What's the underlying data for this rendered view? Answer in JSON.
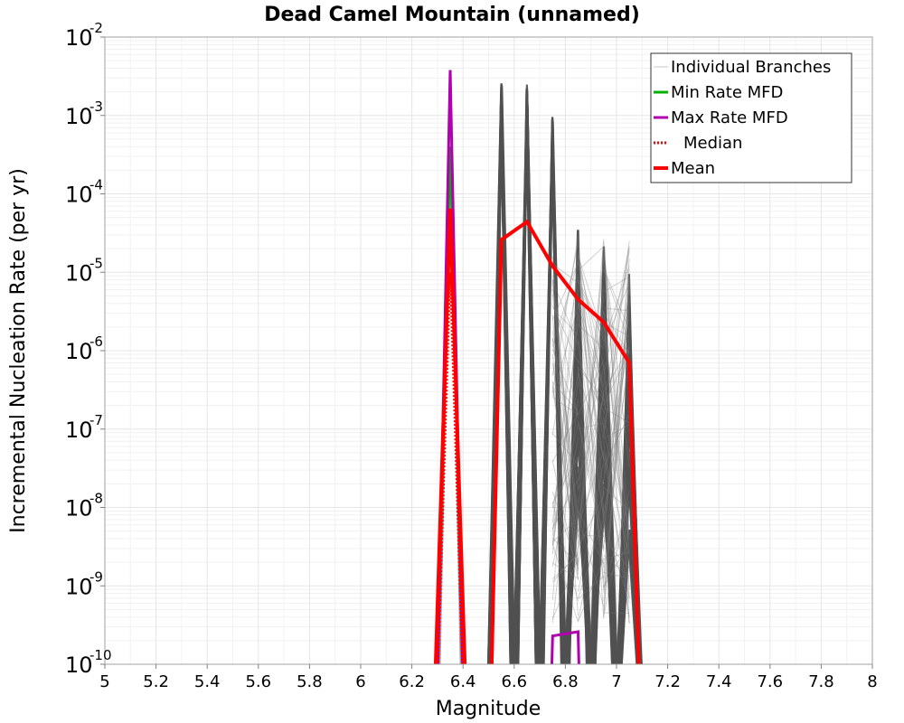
{
  "chart_data": {
    "type": "line",
    "title": "Dead Camel Mountain (unnamed)",
    "xlabel": "Magnitude",
    "ylabel": "Incremental Nucleation Rate (per yr)",
    "xlim": [
      5,
      8
    ],
    "ylim": [
      1e-10,
      0.01
    ],
    "yscale": "log",
    "grid": true,
    "x_ticks": [
      "5",
      "5.2",
      "5.4",
      "5.6",
      "5.8",
      "6",
      "6.2",
      "6.4",
      "6.6",
      "6.8",
      "7",
      "7.2",
      "7.4",
      "7.6",
      "7.8",
      "8"
    ],
    "y_ticks": [
      {
        "base": "10",
        "exp": "-10"
      },
      {
        "base": "10",
        "exp": "-9"
      },
      {
        "base": "10",
        "exp": "-8"
      },
      {
        "base": "10",
        "exp": "-7"
      },
      {
        "base": "10",
        "exp": "-6"
      },
      {
        "base": "10",
        "exp": "-5"
      },
      {
        "base": "10",
        "exp": "-4"
      },
      {
        "base": "10",
        "exp": "-3"
      },
      {
        "base": "10",
        "exp": "-2"
      }
    ],
    "legend": {
      "position": "top-right",
      "entries": [
        {
          "label": "Individual Branches",
          "color": "#c8c8c8",
          "style": "thin"
        },
        {
          "label": "Min Rate MFD",
          "color": "#00b000",
          "style": "solid"
        },
        {
          "label": "Max Rate MFD",
          "color": "#b000b0",
          "style": "solid"
        },
        {
          "label": "Median",
          "color": "#ff0000",
          "style": "dotted"
        },
        {
          "label": "Mean",
          "color": "#ff0000",
          "style": "thick"
        }
      ]
    },
    "colors": {
      "branches": "#505050",
      "min": "#00b000",
      "max": "#b000b0",
      "median": "#ff0000",
      "mean": "#ff0000",
      "grid": "#e6e6e6"
    },
    "series": [
      {
        "name": "Mean",
        "x": [
          6.29,
          6.35,
          6.41,
          6.51,
          6.55,
          6.65,
          6.75,
          6.85,
          6.95,
          7.05,
          7.09
        ],
        "y": [
          1e-10,
          6.5e-05,
          1e-10,
          1e-10,
          2.6e-05,
          4.4e-05,
          1.2e-05,
          4.5e-06,
          2.3e-06,
          7e-07,
          1e-10
        ]
      },
      {
        "name": "Max Rate MFD",
        "x": [
          6.3,
          6.35,
          6.4
        ],
        "y": [
          1e-10,
          0.0038,
          1e-10
        ],
        "x2": [
          6.745,
          6.75,
          6.85,
          6.855
        ],
        "y2": [
          1e-10,
          2.3e-10,
          2.6e-10,
          1e-10
        ]
      },
      {
        "name": "Min Rate MFD",
        "x": [
          6.3,
          6.35,
          6.4
        ],
        "y": [
          1e-10,
          0.0004,
          1e-10
        ]
      },
      {
        "name": "Median",
        "x": [
          6.3,
          6.35,
          6.4
        ],
        "y": [
          1e-10,
          1e-05,
          1e-10
        ]
      },
      {
        "name": "Individual Branches",
        "description": "spike envelopes",
        "spikes": [
          {
            "center": 6.35,
            "peak": 0.0004
          },
          {
            "center": 6.55,
            "peak": 0.0026
          },
          {
            "center": 6.65,
            "peak": 0.0025
          },
          {
            "center": 6.75,
            "peak": 0.001
          },
          {
            "center": 6.85,
            "peak": 3.5e-05
          },
          {
            "center": 6.95,
            "peak": 2.2e-05
          },
          {
            "center": 7.05,
            "peak": 1.1e-05
          }
        ]
      }
    ]
  }
}
